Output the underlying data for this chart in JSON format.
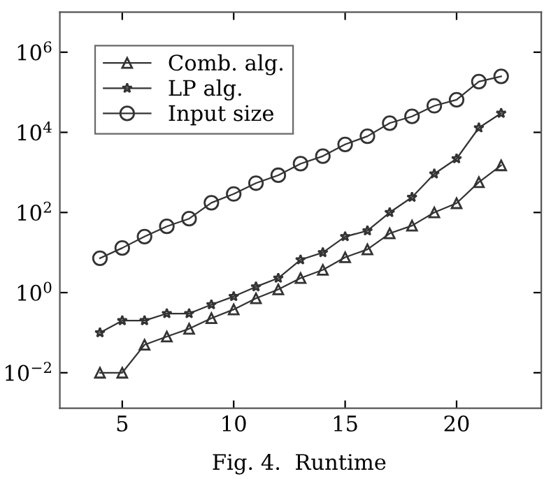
{
  "chart_data": {
    "type": "line",
    "annotations": [
      "Fig. 4.  Runtime"
    ],
    "x": [
      4,
      5,
      6,
      7,
      8,
      9,
      10,
      11,
      12,
      13,
      14,
      15,
      16,
      17,
      18,
      19,
      20,
      21,
      22
    ],
    "series": [
      {
        "name": "Comb. alg.",
        "color": "#333333",
        "marker": "triangle",
        "values": [
          0.01,
          0.01,
          0.05,
          0.08,
          0.125,
          0.23,
          0.38,
          0.72,
          1.2,
          2.3,
          3.7,
          7.6,
          12,
          30,
          47,
          100,
          170,
          570,
          1500
        ]
      },
      {
        "name": "LP alg.",
        "color": "#333333",
        "marker": "star",
        "values": [
          0.1,
          0.2,
          0.2,
          0.3,
          0.3,
          0.5,
          0.8,
          1.4,
          2.3,
          6.6,
          10,
          25,
          35,
          100,
          240,
          920,
          2200,
          13000,
          30000
        ]
      },
      {
        "name": "Input size",
        "color": "#333333",
        "marker": "circle",
        "values": [
          7.2,
          13,
          25,
          45,
          70,
          175,
          290,
          540,
          850,
          1650,
          2550,
          5000,
          8000,
          17000,
          25000,
          46000,
          65000,
          185000,
          250000
        ]
      }
    ],
    "log": "y",
    "xlim": [
      2.2,
      23.8
    ],
    "ylim": [
      0.0013,
      10000000
    ],
    "xticks": [
      5,
      10,
      15,
      20
    ],
    "yticks": [
      {
        "value": 0.01,
        "label": "10$^{−2}$"
      },
      {
        "value": 1,
        "label": "10$^{0}$"
      },
      {
        "value": 100,
        "label": "10$^{2}$"
      },
      {
        "value": 10000,
        "label": "10$^{4}$"
      },
      {
        "value": 1000000,
        "label": "10$^{6}$"
      }
    ],
    "grid": false,
    "legend": "top left",
    "line_style": "solid"
  }
}
